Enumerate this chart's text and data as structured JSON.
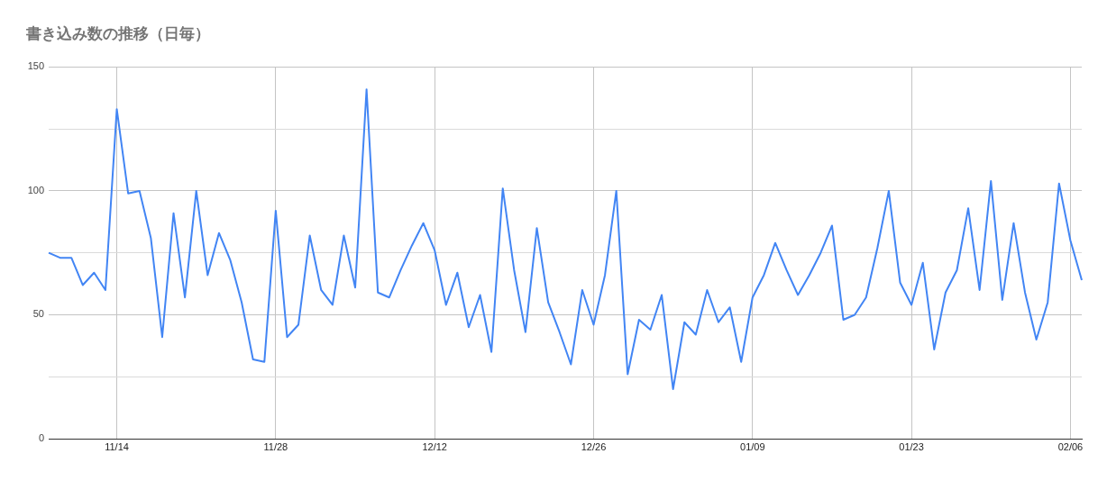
{
  "chart_data": {
    "type": "line",
    "title": "書き込み数の推移（日毎）",
    "categories": [
      null,
      null,
      null,
      null,
      null,
      null,
      "11/14",
      null,
      null,
      null,
      null,
      null,
      null,
      null,
      null,
      null,
      null,
      null,
      null,
      null,
      "11/28",
      null,
      null,
      null,
      null,
      null,
      null,
      null,
      null,
      null,
      null,
      null,
      null,
      null,
      "12/12",
      null,
      null,
      null,
      null,
      null,
      null,
      null,
      null,
      null,
      null,
      null,
      null,
      null,
      "12/26",
      null,
      null,
      null,
      null,
      null,
      null,
      null,
      null,
      null,
      null,
      null,
      null,
      null,
      "01/09",
      null,
      null,
      null,
      null,
      null,
      null,
      null,
      null,
      null,
      null,
      null,
      null,
      null,
      "01/23",
      null,
      null,
      null,
      null,
      null,
      null,
      null,
      null,
      null,
      null,
      null,
      null,
      null,
      "02/06",
      null
    ],
    "series": [
      {
        "color": "#4285f4",
        "values": [
          75,
          73,
          73,
          62,
          67,
          60,
          133,
          99,
          100,
          81,
          41,
          91,
          57,
          100,
          66,
          83,
          72,
          55,
          32,
          31,
          92,
          41,
          46,
          82,
          60,
          54,
          82,
          61,
          141,
          59,
          57,
          68,
          78,
          87,
          76,
          54,
          67,
          45,
          58,
          35,
          101,
          68,
          43,
          85,
          55,
          43,
          30,
          60,
          46,
          66,
          100,
          26,
          48,
          44,
          58,
          20,
          47,
          42,
          60,
          47,
          53,
          31,
          57,
          66,
          79,
          68,
          58,
          66,
          75,
          86,
          48,
          50,
          57,
          77,
          100,
          63,
          54,
          71,
          36,
          59,
          68,
          93,
          60,
          104,
          56,
          87,
          59,
          40,
          55,
          103,
          80,
          64
        ]
      }
    ],
    "ylim": [
      0,
      150
    ],
    "yticks": [
      0,
      {
        "value": 25,
        "label": null
      },
      50,
      {
        "value": 75,
        "label": null
      },
      100,
      {
        "value": 125,
        "label": null
      },
      150
    ],
    "grid": true,
    "legend": false,
    "marker": "none",
    "line_style": "solid"
  }
}
